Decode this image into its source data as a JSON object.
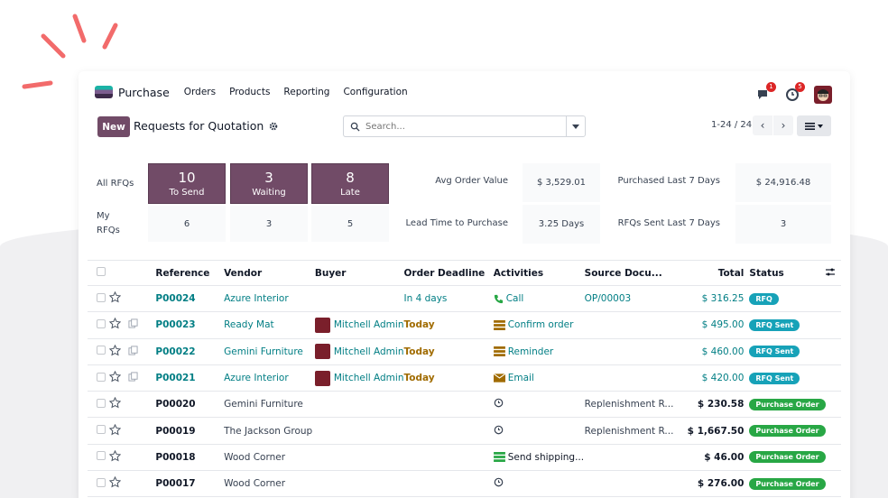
{
  "colors": {
    "brand": "#714b67",
    "link": "#017e84",
    "today": "#a06b00",
    "rfq_badge": "#17a2b8",
    "po_badge": "#28a745",
    "notify_badge": "#dc2626",
    "accent_deco": "#f26b6b"
  },
  "navbar": {
    "app_name": "Purchase",
    "menu": [
      "Orders",
      "Products",
      "Reporting",
      "Configuration"
    ],
    "messages_count": "1",
    "activities_count": "5"
  },
  "control": {
    "new_label": "New",
    "breadcrumb": "Requests for Quotation",
    "search_placeholder": "Search...",
    "pager": "1-24 / 24"
  },
  "stats": {
    "all_rfqs_label": "All RFQs",
    "my_rfqs_label_line1": "My",
    "my_rfqs_label_line2": "RFQs",
    "tiles": [
      {
        "num": "10",
        "label": "To Send"
      },
      {
        "num": "3",
        "label": "Waiting"
      },
      {
        "num": "8",
        "label": "Late"
      }
    ],
    "my": [
      "6",
      "3",
      "5"
    ],
    "avg_order_label": "Avg Order Value",
    "avg_order_value": "$ 3,529.01",
    "lead_time_label": "Lead Time to Purchase",
    "lead_time_value": "3.25 Days",
    "purchased_label": "Purchased Last 7 Days",
    "purchased_value": "$ 24,916.48",
    "sent_label": "RFQs Sent Last 7 Days",
    "sent_value": "3"
  },
  "table": {
    "headers": {
      "reference": "Reference",
      "vendor": "Vendor",
      "buyer": "Buyer",
      "deadline": "Order Deadline",
      "activities": "Activities",
      "source": "Source Docu...",
      "total": "Total",
      "status": "Status"
    },
    "rows": [
      {
        "ref": "P00024",
        "vendor": "Azure Interior",
        "buyer": "",
        "deadline": "In 4 days",
        "activity": "Call",
        "source": "OP/00003",
        "total": "$ 316.25",
        "status": "RFQ"
      },
      {
        "ref": "P00023",
        "vendor": "Ready Mat",
        "buyer": "Mitchell Admin",
        "deadline": "Today",
        "activity": "Confirm order",
        "source": "",
        "total": "$ 495.00",
        "status": "RFQ Sent"
      },
      {
        "ref": "P00022",
        "vendor": "Gemini Furniture",
        "buyer": "Mitchell Admin",
        "deadline": "Today",
        "activity": "Reminder",
        "source": "",
        "total": "$ 460.00",
        "status": "RFQ Sent"
      },
      {
        "ref": "P00021",
        "vendor": "Azure Interior",
        "buyer": "Mitchell Admin",
        "deadline": "Today",
        "activity": "Email",
        "source": "",
        "total": "$ 420.00",
        "status": "RFQ Sent"
      },
      {
        "ref": "P00020",
        "vendor": "Gemini Furniture",
        "buyer": "",
        "deadline": "",
        "activity": "",
        "source": "Replenishment R...",
        "total": "$ 230.58",
        "status": "Purchase Order"
      },
      {
        "ref": "P00019",
        "vendor": "The Jackson Group",
        "buyer": "",
        "deadline": "",
        "activity": "",
        "source": "Replenishment R...",
        "total": "$ 1,667.50",
        "status": "Purchase Order"
      },
      {
        "ref": "P00018",
        "vendor": "Wood Corner",
        "buyer": "",
        "deadline": "",
        "activity": "Send shipping...",
        "source": "",
        "total": "$ 46.00",
        "status": "Purchase Order"
      },
      {
        "ref": "P00017",
        "vendor": "Wood Corner",
        "buyer": "",
        "deadline": "",
        "activity": "",
        "source": "",
        "total": "$ 276.00",
        "status": "Purchase Order"
      }
    ]
  }
}
